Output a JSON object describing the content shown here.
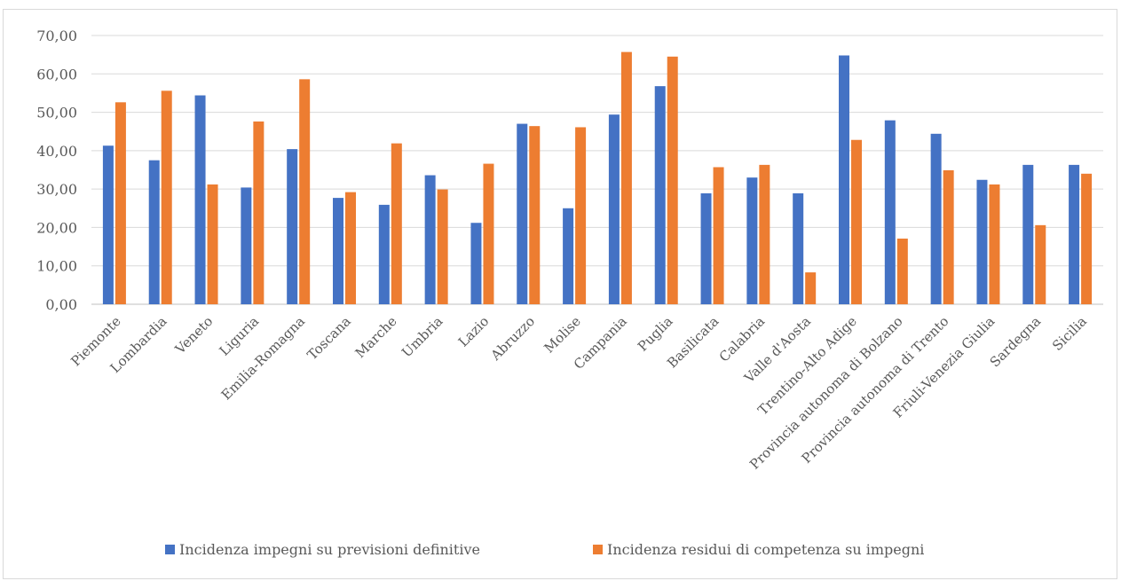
{
  "chart_data": {
    "type": "bar",
    "title": "",
    "xlabel": "",
    "ylabel": "",
    "ylim": [
      0,
      70
    ],
    "yticks": [
      "0,00",
      "10,00",
      "20,00",
      "30,00",
      "40,00",
      "50,00",
      "60,00",
      "70,00"
    ],
    "grid": true,
    "legend_position": "bottom",
    "categories": [
      "Piemonte",
      "Lombardia",
      "Veneto",
      "Liguria",
      "Emilia-Romagna",
      "Toscana",
      "Marche",
      "Umbria",
      "Lazio",
      "Abruzzo",
      "Molise",
      "Campania",
      "Puglia",
      "Basilicata",
      "Calabria",
      "Valle d'Aosta",
      "Trentino-Alto Adige",
      "Provincia autonoma di Bolzano",
      "Provincia autonoma di Trento",
      "Friuli-Venezia Giulia",
      "Sardegna",
      "Sicilia"
    ],
    "series": [
      {
        "name": "Incidenza impegni su previsioni definitive",
        "color": "#4472c4",
        "values": [
          41.3,
          37.5,
          54.4,
          30.4,
          40.4,
          27.7,
          25.9,
          33.6,
          21.2,
          47.0,
          25.0,
          49.4,
          56.8,
          28.9,
          33.0,
          28.9,
          64.8,
          47.9,
          44.4,
          32.4,
          36.3,
          36.3
        ]
      },
      {
        "name": "Incidenza residui di competenza su impegni",
        "color": "#ed7d31",
        "values": [
          52.6,
          55.6,
          31.2,
          47.6,
          58.6,
          29.2,
          41.9,
          29.9,
          36.6,
          46.4,
          46.1,
          65.7,
          64.5,
          35.7,
          36.3,
          8.3,
          42.8,
          17.1,
          34.9,
          31.2,
          20.6,
          34.0
        ]
      }
    ]
  }
}
